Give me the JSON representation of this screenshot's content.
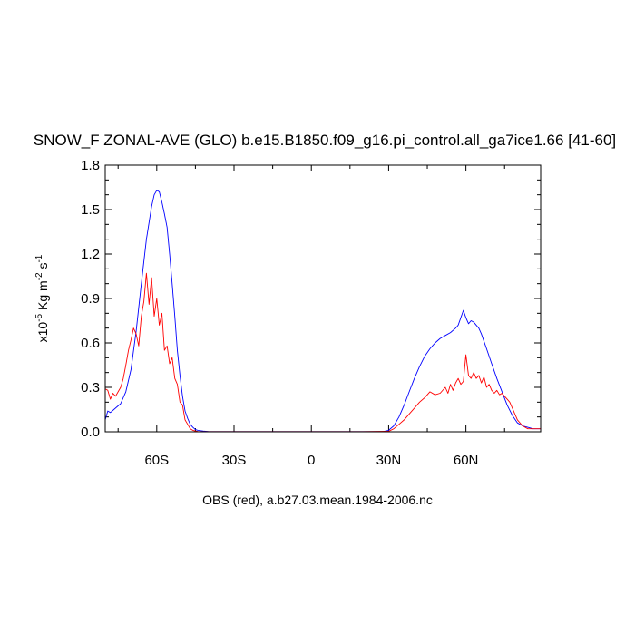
{
  "chart_data": {
    "type": "line",
    "title": "SNOW_F ZONAL-AVE (GLO) b.e15.B1850.f09_g16.pi_control.all_ga7ice1.66 [41-60]",
    "xlabel": "OBS (red), a.b27.03.mean.1984-2006.nc",
    "ylabel": {
      "prefix": "x10",
      "exp": "-5",
      "unit1": " Kg m",
      "exp2": "-2",
      "unit2": " s",
      "exp3": "-1"
    },
    "xlim": [
      -80,
      89
    ],
    "ylim": [
      0,
      1.8
    ],
    "x_ticks": [
      {
        "value": -60,
        "label": "60S"
      },
      {
        "value": -30,
        "label": "30S"
      },
      {
        "value": 0,
        "label": "0"
      },
      {
        "value": 30,
        "label": "30N"
      },
      {
        "value": 60,
        "label": "60N"
      }
    ],
    "y_ticks": [
      {
        "value": 0,
        "label": "0.0"
      },
      {
        "value": 0.3,
        "label": "0.3"
      },
      {
        "value": 0.6,
        "label": "0.6"
      },
      {
        "value": 0.9,
        "label": "0.9"
      },
      {
        "value": 1.2,
        "label": "1.2"
      },
      {
        "value": 1.5,
        "label": "1.5"
      },
      {
        "value": 1.8,
        "label": "1.8"
      }
    ],
    "series": [
      {
        "color": "#0000ff",
        "x": [
          -80,
          -79,
          -78,
          -76,
          -74,
          -72,
          -70,
          -68,
          -66,
          -64,
          -62,
          -61,
          -60,
          -59,
          -58,
          -57,
          -56,
          -55,
          -54,
          -53,
          -52,
          -51,
          -50,
          -49,
          -48,
          -47,
          -46,
          -45,
          -44,
          -42,
          -40,
          -35,
          -30,
          -20,
          -10,
          0,
          10,
          20,
          28,
          30,
          32,
          34,
          36,
          38,
          40,
          42,
          44,
          46,
          48,
          50,
          52,
          54,
          56,
          57,
          58,
          59,
          60,
          61,
          62,
          63,
          64,
          65,
          66,
          68,
          70,
          72,
          74,
          76,
          78,
          80,
          82,
          84,
          86,
          89
        ],
        "y": [
          0.08,
          0.14,
          0.13,
          0.16,
          0.19,
          0.27,
          0.42,
          0.68,
          1.0,
          1.3,
          1.52,
          1.6,
          1.63,
          1.62,
          1.55,
          1.47,
          1.38,
          1.2,
          1.0,
          0.78,
          0.55,
          0.38,
          0.24,
          0.14,
          0.09,
          0.05,
          0.03,
          0.015,
          0.01,
          0.005,
          0.002,
          0.001,
          0.001,
          0.001,
          0.001,
          0.001,
          0.001,
          0.001,
          0.002,
          0.01,
          0.04,
          0.1,
          0.18,
          0.27,
          0.36,
          0.44,
          0.51,
          0.56,
          0.6,
          0.63,
          0.65,
          0.67,
          0.7,
          0.72,
          0.77,
          0.82,
          0.77,
          0.73,
          0.75,
          0.74,
          0.72,
          0.7,
          0.66,
          0.56,
          0.46,
          0.36,
          0.27,
          0.18,
          0.11,
          0.06,
          0.04,
          0.03,
          0.02,
          0.02
        ]
      },
      {
        "color": "#ff0000",
        "x": [
          -80,
          -79,
          -78,
          -77,
          -76,
          -75,
          -74,
          -73,
          -72,
          -71,
          -70,
          -69,
          -68,
          -67,
          -66,
          -65,
          -64,
          -63,
          -62,
          -61,
          -60,
          -59,
          -58,
          -57,
          -56,
          -55,
          -54,
          -53,
          -52,
          -51,
          -50,
          -49,
          -48,
          -47,
          -46,
          -45,
          -44,
          -42,
          -40,
          -35,
          -30,
          -20,
          -10,
          0,
          10,
          20,
          30,
          32,
          34,
          36,
          38,
          40,
          42,
          44,
          46,
          48,
          50,
          52,
          53,
          54,
          55,
          56,
          57,
          58,
          59,
          60,
          61,
          62,
          63,
          64,
          65,
          66,
          67,
          68,
          69,
          70,
          71,
          72,
          73,
          74,
          75,
          76,
          77,
          78,
          79,
          80,
          82,
          84,
          86,
          89
        ],
        "y": [
          0.29,
          0.28,
          0.22,
          0.26,
          0.24,
          0.27,
          0.3,
          0.36,
          0.45,
          0.55,
          0.62,
          0.7,
          0.66,
          0.58,
          0.78,
          0.88,
          1.07,
          0.86,
          1.04,
          0.78,
          0.9,
          0.72,
          0.8,
          0.55,
          0.58,
          0.46,
          0.5,
          0.36,
          0.32,
          0.2,
          0.18,
          0.08,
          0.05,
          0.02,
          0.01,
          0.005,
          0.002,
          0.001,
          0.001,
          0.001,
          0.001,
          0.001,
          0.001,
          0.001,
          0.001,
          0.001,
          0.003,
          0.02,
          0.05,
          0.08,
          0.12,
          0.16,
          0.2,
          0.23,
          0.27,
          0.25,
          0.26,
          0.3,
          0.26,
          0.32,
          0.28,
          0.33,
          0.36,
          0.32,
          0.34,
          0.52,
          0.38,
          0.36,
          0.4,
          0.36,
          0.38,
          0.33,
          0.37,
          0.3,
          0.32,
          0.28,
          0.26,
          0.28,
          0.25,
          0.26,
          0.24,
          0.22,
          0.2,
          0.16,
          0.12,
          0.08,
          0.04,
          0.02,
          0.02,
          0.02
        ]
      }
    ]
  }
}
